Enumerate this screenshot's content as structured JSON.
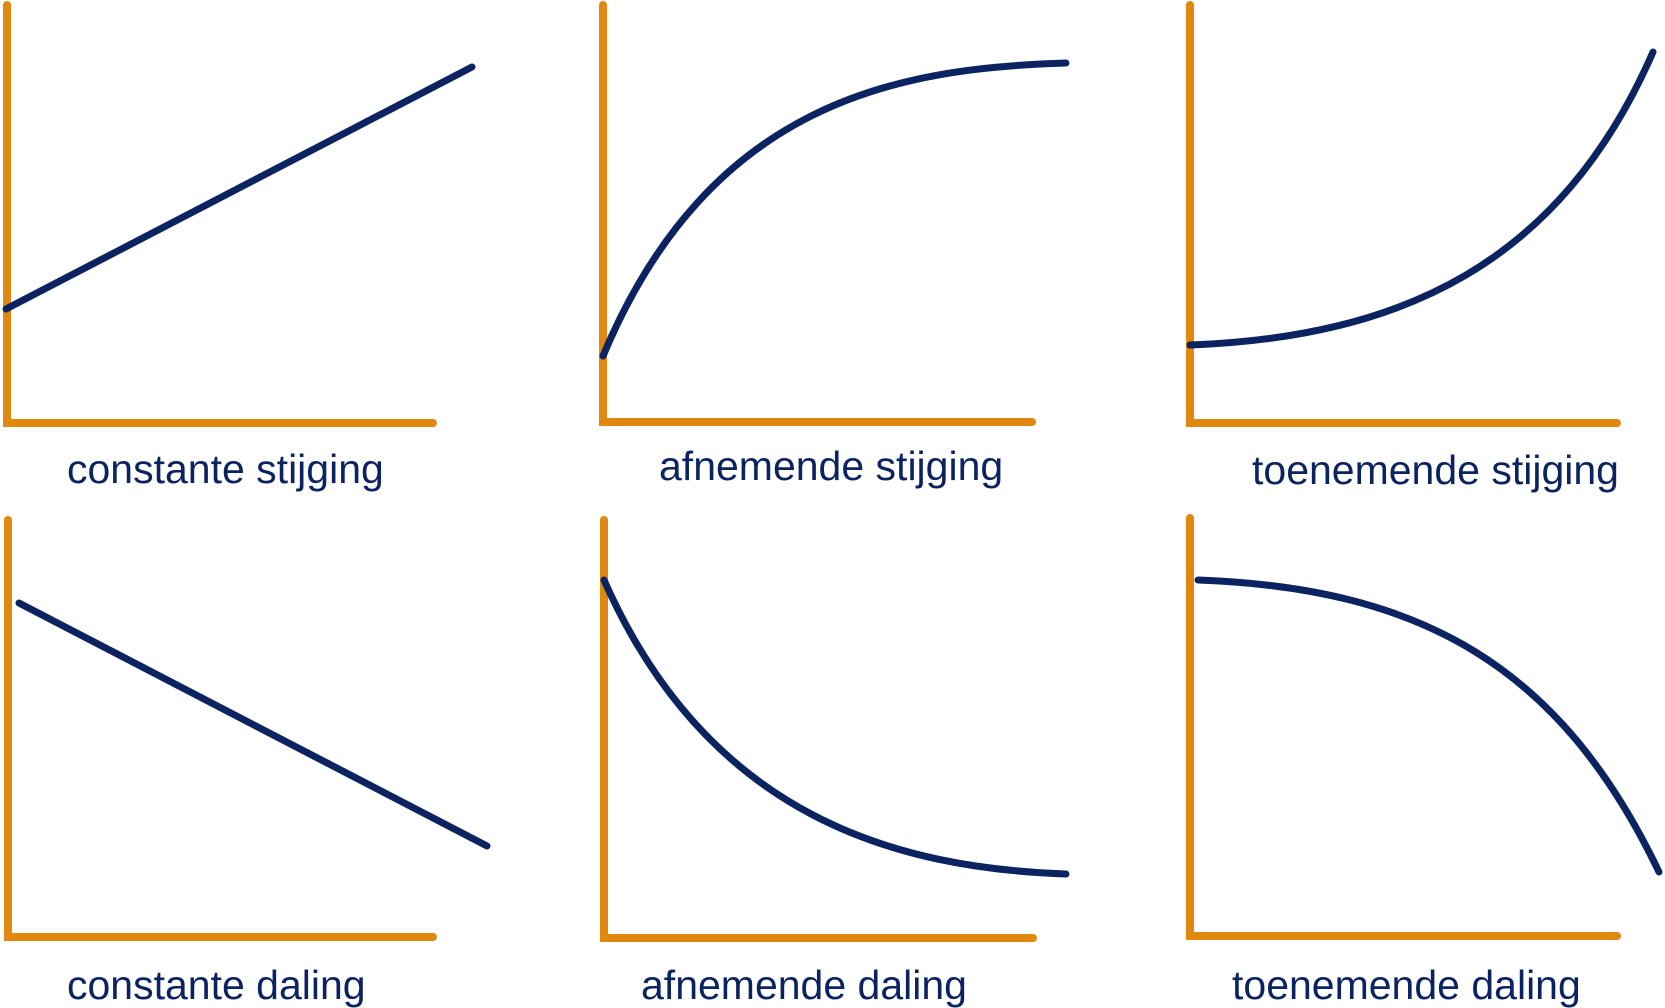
{
  "colors": {
    "axis": "#E0880F",
    "curve": "#0B2461",
    "text": "#0B2461",
    "background": "#FFFFFF"
  },
  "panels": [
    {
      "id": "constant-rise",
      "caption": "constante stijging",
      "trend": "increasing",
      "rate": "constant"
    },
    {
      "id": "decreasing-rise",
      "caption": "afnemende stijging",
      "trend": "increasing",
      "rate": "decreasing"
    },
    {
      "id": "increasing-rise",
      "caption": "toenemende stijging",
      "trend": "increasing",
      "rate": "increasing"
    },
    {
      "id": "constant-fall",
      "caption": "constante daling",
      "trend": "decreasing",
      "rate": "constant"
    },
    {
      "id": "decreasing-fall",
      "caption": "afnemende daling",
      "trend": "decreasing",
      "rate": "decreasing"
    },
    {
      "id": "increasing-fall",
      "caption": "toenemende daling",
      "trend": "decreasing",
      "rate": "increasing"
    }
  ]
}
